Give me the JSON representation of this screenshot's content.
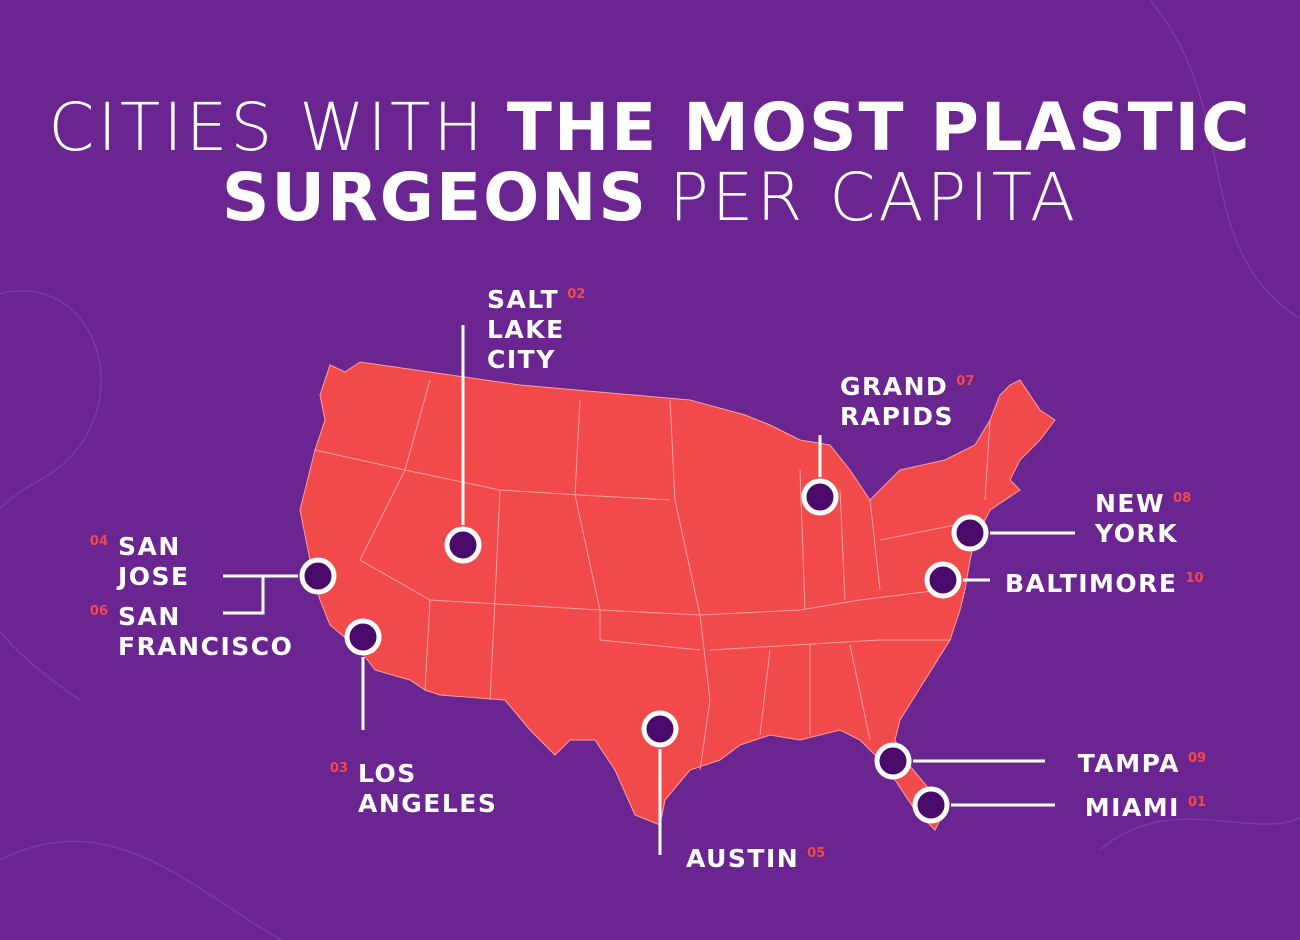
{
  "title": {
    "line1": {
      "light": "CITIES WITH",
      "bold": "THE MOST PLASTIC"
    },
    "line2": {
      "bold": "SURGEONS",
      "light": "PER CAPITA"
    }
  },
  "cities": [
    {
      "name_lines": [
        "SALT",
        "LAKE",
        "CITY"
      ],
      "rank": "02"
    },
    {
      "name_lines": [
        "GRAND",
        "RAPIDS"
      ],
      "rank": "07"
    },
    {
      "name_lines": [
        "NEW",
        "YORK"
      ],
      "rank": "08"
    },
    {
      "name_lines": [
        "BALTIMORE"
      ],
      "rank": "10"
    },
    {
      "name_lines": [
        "SAN",
        "JOSE"
      ],
      "rank": "04"
    },
    {
      "name_lines": [
        "SAN",
        "FRANCISCO"
      ],
      "rank": "06"
    },
    {
      "name_lines": [
        "LOS",
        "ANGELES"
      ],
      "rank": "03"
    },
    {
      "name_lines": [
        "AUSTIN"
      ],
      "rank": "05"
    },
    {
      "name_lines": [
        "TAMPA"
      ],
      "rank": "09"
    },
    {
      "name_lines": [
        "MIAMI"
      ],
      "rank": "01"
    }
  ]
}
